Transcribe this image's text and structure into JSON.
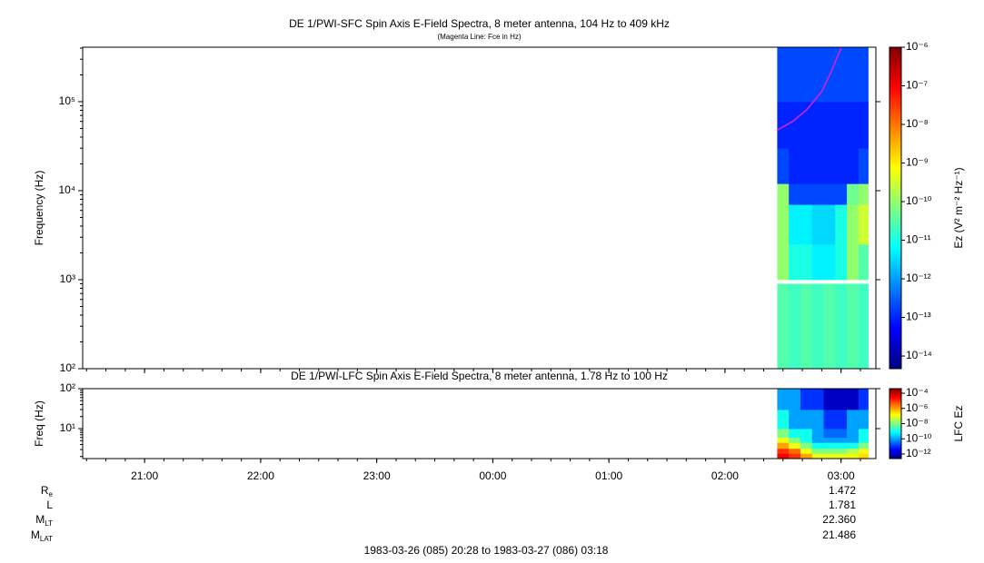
{
  "chart_data": [
    {
      "type": "spectrogram",
      "title": "DE 1/PWI-SFC  Spin Axis E-Field Spectra, 8 meter antenna, 104 Hz to 409 kHz",
      "subtitle": "(Magenta Line: Fce in Hz)",
      "y_label": "Frequency (Hz)",
      "log_y": true,
      "xlim": [
        "1983-03-26T20:28",
        "1983-03-27T03:18"
      ],
      "ylim": [
        100,
        409000
      ],
      "yticks": [
        {
          "value": 100,
          "label": "10²"
        },
        {
          "value": 1000,
          "label": "10³"
        },
        {
          "value": 10000,
          "label": "10⁴"
        },
        {
          "value": 100000,
          "label": "10⁵"
        }
      ],
      "colorbar_label": "Ez (V² m⁻² Hz⁻¹)",
      "clim": [
        4.7e-15,
        1e-06
      ],
      "cticks": [
        {
          "value": 1e-14,
          "label": "10⁻¹⁴"
        },
        {
          "value": 1e-13,
          "label": "10⁻¹³"
        },
        {
          "value": 1e-12,
          "label": "10⁻¹²"
        },
        {
          "value": 1e-11,
          "label": "10⁻¹¹"
        },
        {
          "value": 1e-10,
          "label": "10⁻¹⁰"
        },
        {
          "value": 1e-09,
          "label": "10⁻⁹"
        },
        {
          "value": 1e-08,
          "label": "10⁻⁸"
        },
        {
          "value": 1e-07,
          "label": "10⁻⁷"
        },
        {
          "value": 1e-06,
          "label": "10⁻⁶"
        }
      ],
      "colormap": [
        "#00007f",
        "#0000ff",
        "#0080ff",
        "#00ffff",
        "#80ff80",
        "#ffff00",
        "#ff8000",
        "#ff0000",
        "#7f0000"
      ],
      "time_edges": [
        "1983-03-27T02:27",
        "1983-03-27T02:33",
        "1983-03-27T02:39",
        "1983-03-27T02:45",
        "1983-03-27T02:51",
        "1983-03-27T02:57",
        "1983-03-27T03:03",
        "1983-03-27T03:09",
        "1983-03-27T03:14"
      ],
      "freq_edges": [
        100,
        900,
        1000,
        2500,
        7000,
        12000,
        30000,
        100000,
        409000
      ],
      "values": [
        [
          3e-11,
          2e-11,
          3e-11,
          2e-11,
          3e-11,
          2e-11,
          3e-11,
          2e-11
        ],
        [
          null,
          null,
          null,
          null,
          null,
          null,
          null,
          null
        ],
        [
          1e-10,
          1e-11,
          1e-11,
          5e-12,
          5e-12,
          1e-11,
          1e-10,
          3e-11
        ],
        [
          1e-10,
          5e-12,
          5e-12,
          3e-12,
          3e-12,
          1e-11,
          1e-10,
          3e-10
        ],
        [
          1e-10,
          2e-13,
          2e-13,
          2e-13,
          2e-13,
          2e-13,
          5e-11,
          1e-10
        ],
        [
          2e-13,
          1e-13,
          1e-13,
          1e-13,
          1e-13,
          1e-13,
          1e-13,
          2e-13
        ],
        [
          1e-13,
          1e-13,
          1e-13,
          1e-13,
          1e-13,
          1e-13,
          1e-13,
          1e-13
        ],
        [
          2e-13,
          2e-13,
          2e-13,
          2e-13,
          2e-13,
          2e-13,
          2e-13,
          2e-13
        ]
      ],
      "fce": {
        "color": "#e020e0",
        "x": [
          "1983-03-27T02:27",
          "1983-03-27T02:35",
          "1983-03-27T02:42",
          "1983-03-27T02:50",
          "1983-03-27T02:55",
          "1983-03-27T03:00"
        ],
        "values": [
          48000,
          60000,
          80000,
          130000,
          220000,
          400000
        ]
      }
    },
    {
      "type": "spectrogram",
      "title": "DE 1/PWI-LFC  Spin Axis E-Field Spectra, 8 meter antenna, 1.78 Hz to 100 Hz",
      "y_label": "Freq (Hz)",
      "log_y": true,
      "xlim": [
        "1983-03-26T20:28",
        "1983-03-27T03:18"
      ],
      "xticks": [
        {
          "value": "1983-03-26T21:00",
          "label": "21:00"
        },
        {
          "value": "1983-03-26T22:00",
          "label": "22:00"
        },
        {
          "value": "1983-03-26T23:00",
          "label": "23:00"
        },
        {
          "value": "1983-03-27T00:00",
          "label": "00:00"
        },
        {
          "value": "1983-03-27T01:00",
          "label": "01:00"
        },
        {
          "value": "1983-03-27T02:00",
          "label": "02:00"
        },
        {
          "value": "1983-03-27T03:00",
          "label": "03:00"
        }
      ],
      "ylim": [
        1.78,
        100
      ],
      "yticks": [
        {
          "value": 10,
          "label": "10¹"
        },
        {
          "value": 100,
          "label": "10²"
        }
      ],
      "colorbar_label": "LFC Ez",
      "clim": [
        2.5e-13,
        0.0004
      ],
      "cticks": [
        {
          "value": 1e-12,
          "label": "10⁻¹²"
        },
        {
          "value": 1e-10,
          "label": "10⁻¹⁰"
        },
        {
          "value": 1e-08,
          "label": "10⁻⁸"
        },
        {
          "value": 1e-06,
          "label": "10⁻⁶"
        },
        {
          "value": 0.0001,
          "label": "10⁻⁴"
        }
      ],
      "colormap": [
        "#00007f",
        "#0000ff",
        "#0080ff",
        "#00ffff",
        "#80ff80",
        "#ffff00",
        "#ff8000",
        "#ff0000",
        "#7f0000"
      ],
      "time_edges": [
        "1983-03-27T02:27",
        "1983-03-27T02:33",
        "1983-03-27T02:39",
        "1983-03-27T02:45",
        "1983-03-27T02:51",
        "1983-03-27T02:57",
        "1983-03-27T03:03",
        "1983-03-27T03:09",
        "1983-03-27T03:14"
      ],
      "freq_edges": [
        1.78,
        2.4,
        3.2,
        4.5,
        6,
        10,
        30,
        100
      ],
      "values": [
        [
          3e-05,
          1e-05,
          1e-06,
          1e-07,
          1e-07,
          1e-07,
          1e-07,
          3e-07
        ],
        [
          1e-05,
          3e-06,
          1e-07,
          1e-08,
          1e-08,
          1e-08,
          3e-08,
          1e-07
        ],
        [
          1e-06,
          1e-07,
          1e-08,
          1e-09,
          1e-09,
          1e-09,
          1e-09,
          1e-08
        ],
        [
          1e-07,
          1e-08,
          1e-09,
          1e-10,
          1e-10,
          1e-10,
          1e-10,
          1e-09
        ],
        [
          1e-08,
          1e-09,
          1e-09,
          1e-10,
          3e-11,
          3e-11,
          1e-10,
          1e-09
        ],
        [
          1e-09,
          1e-10,
          1e-10,
          1e-10,
          1e-11,
          1e-11,
          1e-10,
          1e-10
        ],
        [
          1e-10,
          1e-10,
          1e-11,
          1e-11,
          1e-12,
          1e-12,
          1e-12,
          1e-11
        ]
      ]
    }
  ],
  "ephemeris": {
    "labels": [
      {
        "main": "R",
        "sub": "e"
      },
      {
        "main": "L"
      },
      {
        "main": "M",
        "sub": "LT"
      },
      {
        "main": "M",
        "sub": "LAT"
      }
    ],
    "values": [
      1.472,
      1.781,
      22.36,
      21.486
    ],
    "value_labels": [
      "1.472",
      "1.781",
      "22.360",
      "21.486"
    ],
    "range_label": "1983-03-26 (085) 20:28 to 1983-03-27 (086) 03:18"
  }
}
